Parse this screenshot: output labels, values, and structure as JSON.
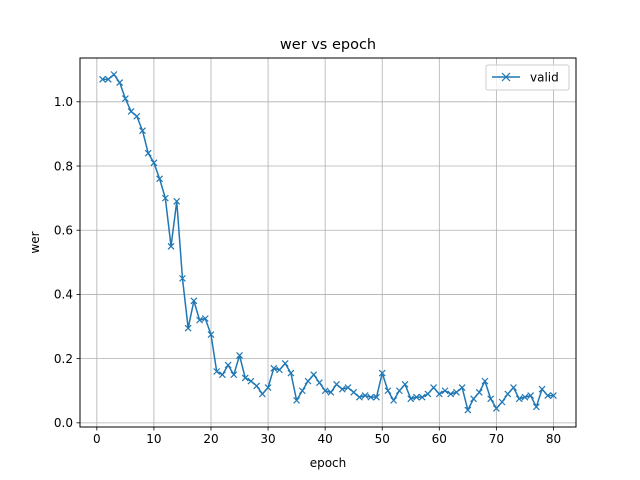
{
  "chart_data": {
    "type": "line",
    "title": "wer vs epoch",
    "xlabel": "epoch",
    "ylabel": "wer",
    "xlim": [
      -2.95,
      83.95
    ],
    "ylim": [
      -0.0129,
      1.1364
    ],
    "xticks": [
      0,
      10,
      20,
      30,
      40,
      50,
      60,
      70,
      80
    ],
    "yticks": [
      0.0,
      0.2,
      0.4,
      0.6,
      0.8,
      1.0
    ],
    "grid": true,
    "legend_position": "top-right",
    "series": [
      {
        "name": "valid",
        "color": "#1f77b4",
        "marker": "x",
        "x": [
          1,
          2,
          3,
          4,
          5,
          6,
          7,
          8,
          9,
          10,
          11,
          12,
          13,
          14,
          15,
          16,
          17,
          18,
          19,
          20,
          21,
          22,
          23,
          24,
          25,
          26,
          27,
          28,
          29,
          30,
          31,
          32,
          33,
          34,
          35,
          36,
          37,
          38,
          39,
          40,
          41,
          42,
          43,
          44,
          45,
          46,
          47,
          48,
          49,
          50,
          51,
          52,
          53,
          54,
          55,
          56,
          57,
          58,
          59,
          60,
          61,
          62,
          63,
          64,
          65,
          66,
          67,
          68,
          69,
          70,
          71,
          72,
          73,
          74,
          75,
          76,
          77,
          78,
          79,
          80
        ],
        "y": [
          1.07,
          1.07,
          1.085,
          1.06,
          1.01,
          0.97,
          0.955,
          0.91,
          0.84,
          0.81,
          0.76,
          0.7,
          0.55,
          0.69,
          0.45,
          0.295,
          0.38,
          0.32,
          0.325,
          0.275,
          0.16,
          0.15,
          0.18,
          0.15,
          0.21,
          0.14,
          0.13,
          0.115,
          0.09,
          0.11,
          0.17,
          0.165,
          0.185,
          0.155,
          0.07,
          0.1,
          0.13,
          0.15,
          0.125,
          0.1,
          0.095,
          0.12,
          0.105,
          0.11,
          0.095,
          0.08,
          0.085,
          0.08,
          0.08,
          0.155,
          0.1,
          0.07,
          0.1,
          0.12,
          0.075,
          0.08,
          0.08,
          0.09,
          0.11,
          0.09,
          0.1,
          0.09,
          0.095,
          0.11,
          0.04,
          0.075,
          0.095,
          0.13,
          0.075,
          0.045,
          0.065,
          0.09,
          0.11,
          0.075,
          0.08,
          0.085,
          0.05,
          0.105,
          0.085,
          0.085
        ]
      }
    ]
  }
}
